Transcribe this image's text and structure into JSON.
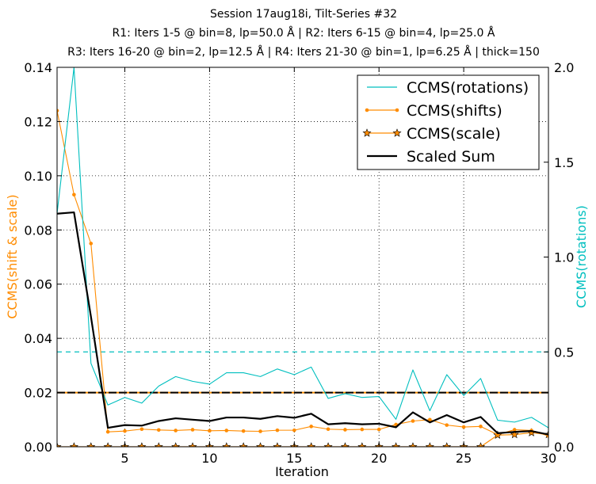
{
  "chart_data": {
    "type": "line",
    "title_lines": [
      "Session 17aug18i, Tilt-Series #32",
      "R1: Iters 1-5 @ bin=8, lp=50.0 Å | R2: Iters 6-15 @ bin=4, lp=25.0 Å",
      "R3: Iters 16-20 @ bin=2, lp=12.5 Å | R4: Iters 21-30 @ bin=1, lp=6.25 Å | thick=150"
    ],
    "xlabel": "Iteration",
    "ylabel_left": "CCMS(shift & scale)",
    "ylabel_right": "CCMS(rotations)",
    "xlim": [
      1,
      30
    ],
    "ylim_left": [
      0,
      0.14
    ],
    "ylim_right": [
      0,
      2.0
    ],
    "x_ticks": [
      5,
      10,
      15,
      20,
      25,
      30
    ],
    "x_tick_labels": [
      "5",
      "10",
      "15",
      "20",
      "25",
      "30"
    ],
    "y_left_ticks": [
      0,
      0.02,
      0.04,
      0.06,
      0.08,
      0.1,
      0.12,
      0.14
    ],
    "y_left_tick_labels": [
      "0.00",
      "0.02",
      "0.04",
      "0.06",
      "0.08",
      "0.10",
      "0.12",
      "0.14"
    ],
    "y_right_ticks": [
      0,
      0.5,
      1.0,
      1.5,
      2.0
    ],
    "y_right_tick_labels": [
      "0.0",
      "0.5",
      "1.0",
      "1.5",
      "2.0"
    ],
    "grid": true,
    "legend_position": "top-right",
    "colors": {
      "rotations": "#00bfbf",
      "shifts": "#ff8c00",
      "scale_marker": "#ff8c00",
      "sum": "#000000",
      "threshold_right": "#00bfbf",
      "threshold_left": "#000000"
    },
    "x": [
      1,
      2,
      3,
      4,
      5,
      6,
      7,
      8,
      9,
      10,
      11,
      12,
      13,
      14,
      15,
      16,
      17,
      18,
      19,
      20,
      21,
      22,
      23,
      24,
      25,
      26,
      27,
      28,
      29,
      30
    ],
    "series": [
      {
        "name": "CCMS(rotations)",
        "axis": "right",
        "style": "line",
        "values": [
          1.23,
          2.0,
          0.44,
          0.22,
          0.26,
          0.23,
          0.32,
          0.37,
          0.345,
          0.33,
          0.39,
          0.39,
          0.37,
          0.41,
          0.38,
          0.42,
          0.255,
          0.28,
          0.26,
          0.265,
          0.145,
          0.405,
          0.19,
          0.38,
          0.27,
          0.36,
          0.14,
          0.13,
          0.155,
          0.1
        ]
      },
      {
        "name": "CCMS(shifts)",
        "axis": "left",
        "style": "line-dot",
        "values": [
          0.124,
          0.093,
          0.075,
          0.0055,
          0.0058,
          0.0065,
          0.0062,
          0.006,
          0.0063,
          0.0059,
          0.006,
          0.0058,
          0.0057,
          0.0061,
          0.0061,
          0.0075,
          0.0065,
          0.0063,
          0.0064,
          0.0064,
          0.0082,
          0.0095,
          0.01,
          0.008,
          0.0073,
          0.0075,
          0.0045,
          0.0063,
          0.006,
          0.004
        ]
      },
      {
        "name": "CCMS(scale)",
        "axis": "left",
        "style": "line-star",
        "values": [
          0,
          0,
          0,
          0,
          0,
          0,
          0,
          0,
          0,
          0,
          0,
          0,
          0,
          0,
          0,
          0,
          0,
          0,
          0,
          0,
          0,
          0,
          0,
          0,
          0,
          0,
          0.0043,
          0.0045,
          0.0052,
          0.0045
        ]
      },
      {
        "name": "Scaled Sum",
        "axis": "left",
        "style": "thick-line",
        "values": [
          0.086,
          0.0865,
          0.048,
          0.007,
          0.008,
          0.0078,
          0.0095,
          0.0105,
          0.01,
          0.0095,
          0.0108,
          0.0108,
          0.0103,
          0.0113,
          0.0107,
          0.0122,
          0.0083,
          0.0087,
          0.0083,
          0.0085,
          0.0072,
          0.0127,
          0.009,
          0.0117,
          0.009,
          0.011,
          0.005,
          0.0055,
          0.0058,
          0.0045
        ]
      }
    ],
    "thresholds": [
      {
        "axis": "right",
        "value": 0.5,
        "style": "dashed",
        "color_key": "threshold_right"
      },
      {
        "axis": "left",
        "value": 0.02,
        "style": "dash-dot",
        "color_key": "threshold_left"
      }
    ]
  }
}
